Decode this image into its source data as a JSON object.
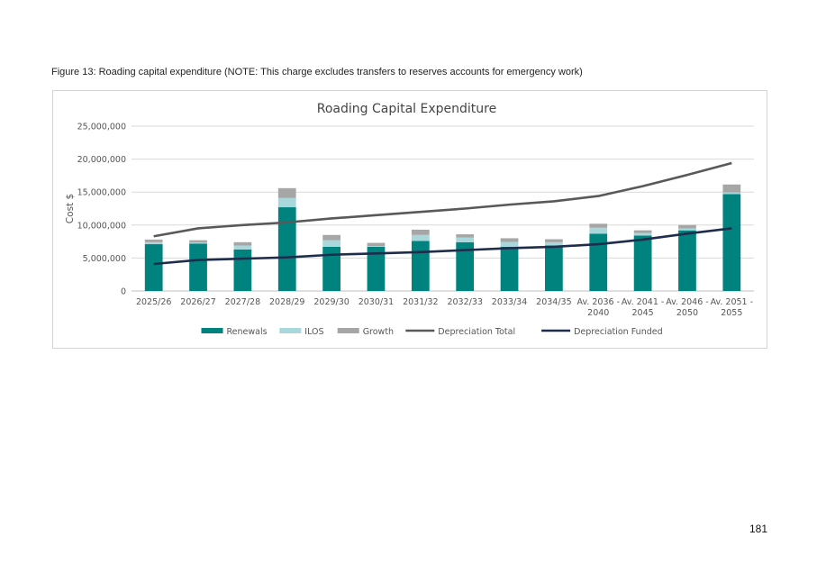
{
  "caption": "Figure 13: Roading capital expenditure (NOTE: This charge excludes transfers to reserves accounts for emergency work)",
  "page_number": "181",
  "chart_data": {
    "type": "bar",
    "stacked": true,
    "title": "Roading Capital Expenditure",
    "xlabel": "",
    "ylabel": "Cost $",
    "ylim": [
      0,
      25000000
    ],
    "yticks": [
      0,
      5000000,
      10000000,
      15000000,
      20000000,
      25000000
    ],
    "ytick_labels": [
      "0",
      "5,000,000",
      "10,000,000",
      "15,000,000",
      "20,000,000",
      "25,000,000"
    ],
    "grid": true,
    "legend_position": "bottom",
    "categories": [
      [
        "2025/26"
      ],
      [
        "2026/27"
      ],
      [
        "2027/28"
      ],
      [
        "2028/29"
      ],
      [
        "2029/30"
      ],
      [
        "2030/31"
      ],
      [
        "2031/32"
      ],
      [
        "2032/33"
      ],
      [
        "2033/34"
      ],
      [
        "2034/35"
      ],
      [
        "Av. 2036 -",
        "2040"
      ],
      [
        "Av. 2041 -",
        "2045"
      ],
      [
        "Av. 2046 -",
        "2050"
      ],
      [
        "Av. 2051 -",
        "2055"
      ]
    ],
    "bar_series": [
      {
        "name": "Renewals",
        "color": "#00837f",
        "values": [
          7100000,
          7200000,
          6300000,
          12700000,
          6700000,
          6700000,
          7600000,
          7400000,
          6700000,
          6900000,
          8700000,
          8400000,
          9200000,
          14700000
        ]
      },
      {
        "name": "ILOS",
        "color": "#a8d8dc",
        "values": [
          300000,
          150000,
          600000,
          1400000,
          1000000,
          100000,
          900000,
          700000,
          750000,
          500000,
          900000,
          400000,
          300000,
          250000
        ]
      },
      {
        "name": "Growth",
        "color": "#a6a6a6",
        "values": [
          400000,
          350000,
          500000,
          1500000,
          800000,
          500000,
          800000,
          500000,
          550000,
          450000,
          600000,
          400000,
          500000,
          1200000
        ]
      }
    ],
    "line_series": [
      {
        "name": "Depreciation Total",
        "color": "#595959",
        "values": [
          8300000,
          9500000,
          10000000,
          10400000,
          11000000,
          11500000,
          12000000,
          12500000,
          13100000,
          13600000,
          14400000,
          15900000,
          17600000,
          19400000
        ]
      },
      {
        "name": "Depreciation Funded",
        "color": "#1f2d4d",
        "values": [
          4100000,
          4700000,
          4900000,
          5100000,
          5500000,
          5700000,
          5900000,
          6200000,
          6500000,
          6700000,
          7100000,
          7800000,
          8700000,
          9500000
        ]
      }
    ]
  }
}
